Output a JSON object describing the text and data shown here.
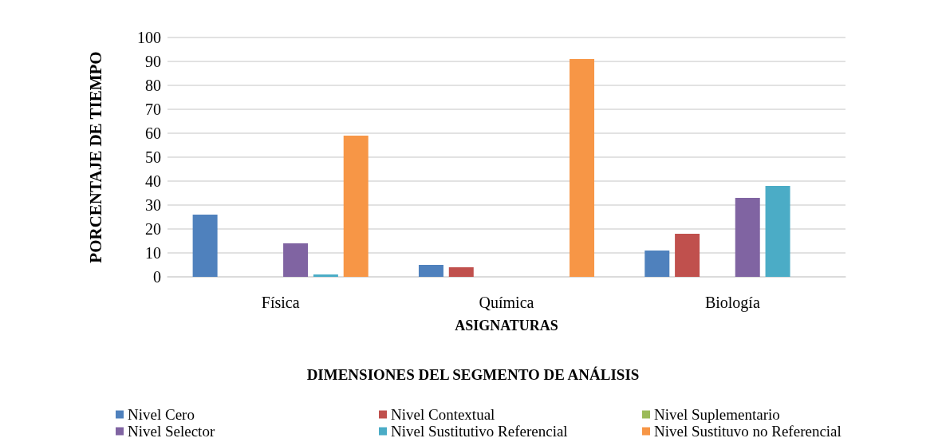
{
  "chart_data": {
    "type": "bar",
    "xlabel": "ASIGNATURAS",
    "ylabel": "PORCENTAJE DE TIEMPO",
    "legend_title": "DIMENSIONES DEL SEGMENTO DE ANÁLISIS",
    "categories": [
      "Física",
      "Química",
      "Biología"
    ],
    "series": [
      {
        "name": "Nivel Cero",
        "color": "#4f81bd",
        "values": [
          26,
          5,
          11
        ]
      },
      {
        "name": "Nivel Contextual",
        "color": "#c0504d",
        "values": [
          0,
          4,
          18
        ]
      },
      {
        "name": "Nivel Suplementario",
        "color": "#9bbb59",
        "values": [
          0,
          0,
          0
        ]
      },
      {
        "name": "Nivel Selector",
        "color": "#8064a2",
        "values": [
          14,
          0,
          33
        ]
      },
      {
        "name": "Nivel Sustitutivo Referencial",
        "color": "#4bacc6",
        "values": [
          1,
          0,
          38
        ]
      },
      {
        "name": "Nivel Sustituvo no Referencial",
        "color": "#f79646",
        "values": [
          59,
          91,
          0
        ]
      }
    ],
    "ylim": [
      0,
      100
    ],
    "yticks": [
      0,
      10,
      20,
      30,
      40,
      50,
      60,
      70,
      80,
      90,
      100
    ],
    "grid": "y",
    "legend": "bottom"
  }
}
